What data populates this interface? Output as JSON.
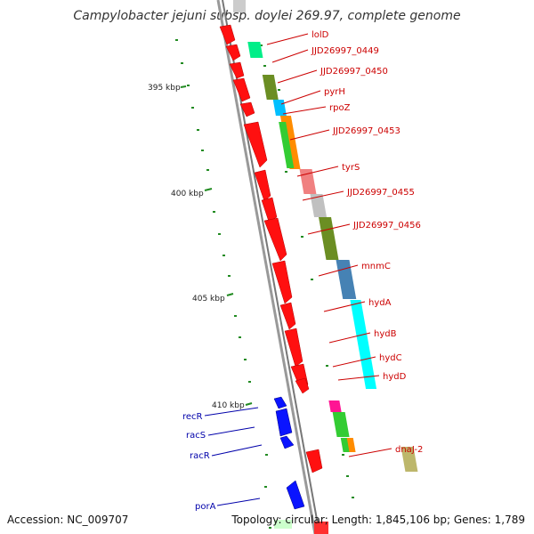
{
  "title": "Campylobacter jejuni subsp. doylei 269.97, complete genome",
  "accession": "Accession: NC_009707",
  "summary": "Topology: circular; Length: 1,845,106 bp; Genes: 1,789",
  "scale_ticks": [
    {
      "label": "395 kbp",
      "major": true
    },
    {
      "label": "400 kbp",
      "major": true
    },
    {
      "label": "405 kbp",
      "major": true
    },
    {
      "label": "410 kbp",
      "major": true
    }
  ],
  "genes_forward": [
    {
      "label": "lolD",
      "color": "#ff0000"
    },
    {
      "label": "JJD26997_0449",
      "color": "#ff0000"
    },
    {
      "label": "JJD26997_0450",
      "color": "#ff0000"
    },
    {
      "label": "pyrH",
      "color": "#ff0000"
    },
    {
      "label": "rpoZ",
      "color": "#ff0000"
    },
    {
      "label": "JJD26997_0453",
      "color": "#ff0000"
    },
    {
      "label": "tyrS",
      "color": "#ff0000"
    },
    {
      "label": "JJD26997_0455",
      "color": "#ff0000"
    },
    {
      "label": "JJD26997_0456",
      "color": "#ff0000"
    },
    {
      "label": "mnmC",
      "color": "#ff0000"
    },
    {
      "label": "hydA",
      "color": "#ff0000"
    },
    {
      "label": "hydB",
      "color": "#ff0000"
    },
    {
      "label": "hydC",
      "color": "#ff0000"
    },
    {
      "label": "hydD",
      "color": "#ff0000"
    },
    {
      "label": "dnaJ-2",
      "color": "#ff0000"
    }
  ],
  "genes_reverse": [
    {
      "label": "recR",
      "color": "#0000ff"
    },
    {
      "label": "racS",
      "color": "#0000ff"
    },
    {
      "label": "racR",
      "color": "#0000ff"
    },
    {
      "label": "porA",
      "color": "#0000ff"
    }
  ],
  "cog_colors": [
    "#cccccc",
    "#00ee88",
    "#6b8e23",
    "#00bfff",
    "#ff8c00",
    "#33cc33",
    "#f08080",
    "#c0c0c0",
    "#4682b4",
    "#00ffff",
    "#ff1493",
    "#bdb76b"
  ],
  "colors": {
    "forward": "#ff0000",
    "reverse": "#0000ff",
    "backbone": "#888888",
    "label_fwd": "#cc0000",
    "label_rev": "#0000aa",
    "tick": "#228b22"
  }
}
